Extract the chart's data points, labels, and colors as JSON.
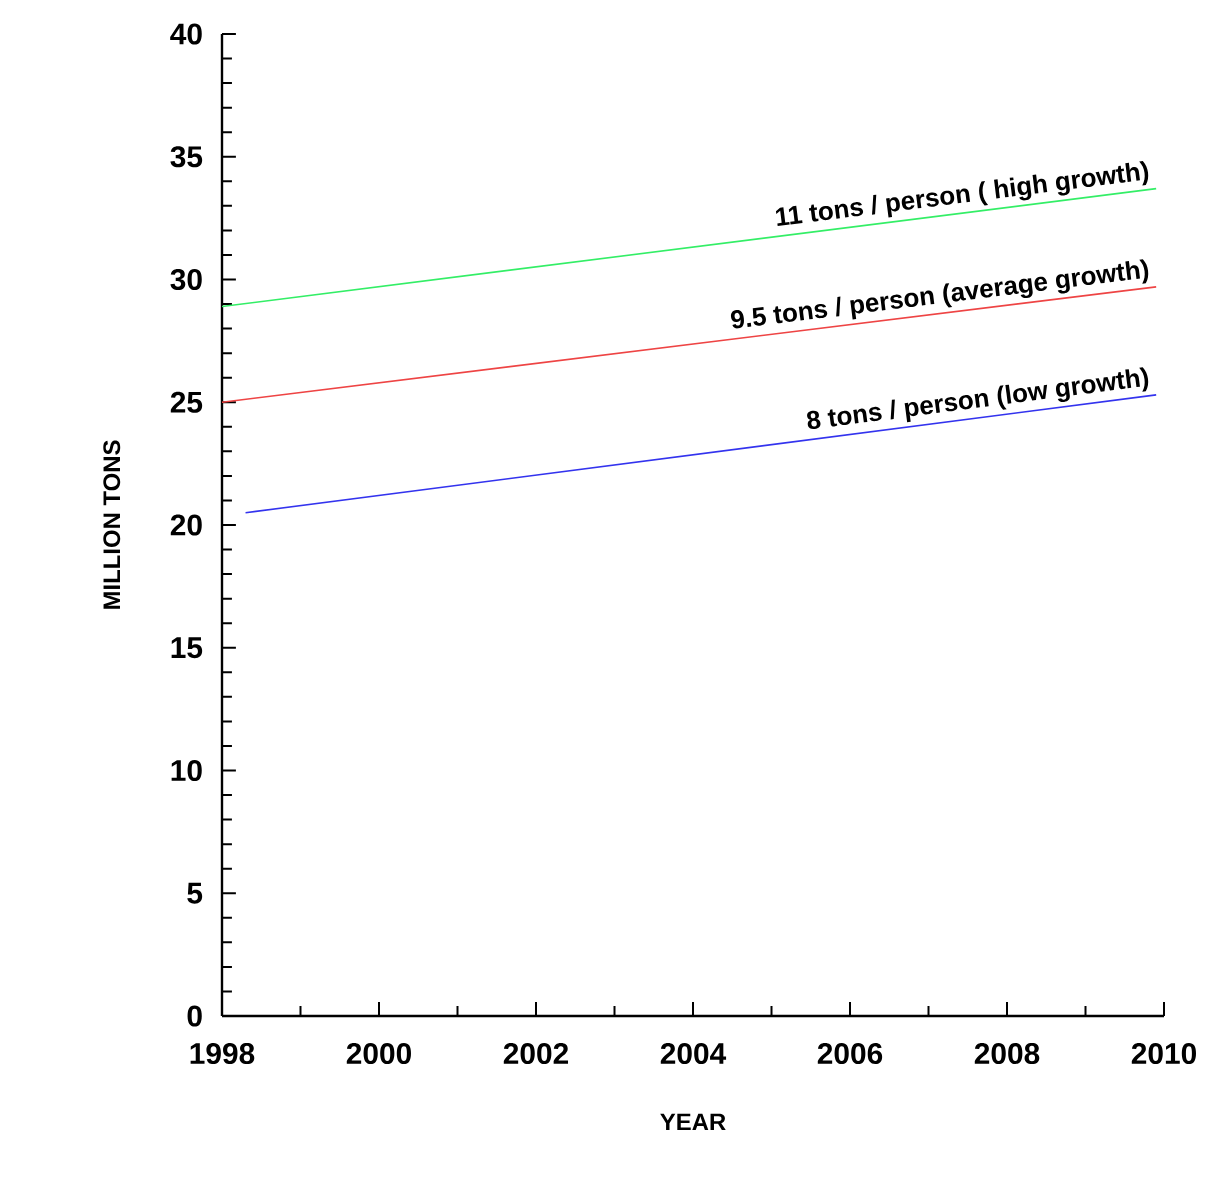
{
  "chart_data": {
    "type": "line",
    "xlabel": "YEAR",
    "ylabel": "MILLION TONS",
    "xlim": [
      1998,
      2010
    ],
    "xticks": [
      1998,
      2000,
      2002,
      2004,
      2006,
      2008,
      2010
    ],
    "ylim": [
      0,
      40
    ],
    "yticks": [
      0,
      5,
      10,
      15,
      20,
      25,
      30,
      35,
      40
    ],
    "grid": false,
    "legend": false,
    "marker": "none",
    "line_style": "solid",
    "series": [
      {
        "name": "11 tons / person ( high growth)",
        "color": "#33ee66",
        "x": [
          1998,
          2009.9
        ],
        "values": [
          28.9,
          33.7
        ]
      },
      {
        "name": "9.5 tons / person (average growth)",
        "color": "#ee4444",
        "x": [
          1998,
          2009.9
        ],
        "values": [
          25.0,
          29.7
        ]
      },
      {
        "name": "8 tons / person (low growth)",
        "color": "#3333ee",
        "x": [
          1998.3,
          2009.9
        ],
        "values": [
          20.5,
          25.3
        ]
      }
    ]
  }
}
